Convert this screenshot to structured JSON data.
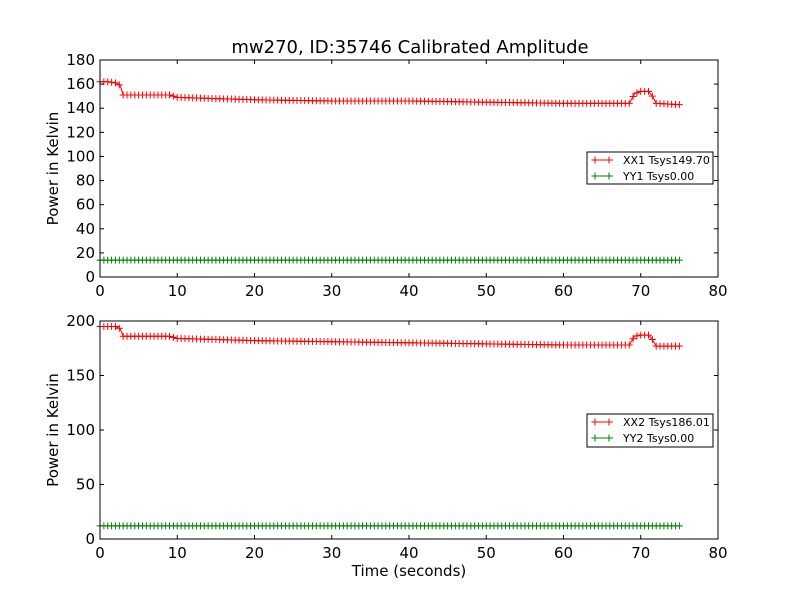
{
  "figure": {
    "title": "mw270, ID:35746 Calibrated Amplitude"
  },
  "chart_data": [
    {
      "type": "line",
      "title": "mw270, ID:35746 Calibrated Amplitude",
      "xlabel": "",
      "ylabel": "Power in Kelvin",
      "xlim": [
        0,
        80
      ],
      "ylim": [
        0,
        180
      ],
      "xticks": [
        0,
        10,
        20,
        30,
        40,
        50,
        60,
        70,
        80
      ],
      "yticks": [
        0,
        20,
        40,
        60,
        80,
        100,
        120,
        140,
        160,
        180
      ],
      "grid": false,
      "legend_placement": "center-right",
      "series": [
        {
          "name": "XX1 Tsys149.70",
          "color": "#ff0000",
          "marker": "+",
          "points": [
            [
              0,
              162
            ],
            [
              1,
              162
            ],
            [
              2,
              161
            ],
            [
              2.6,
              159
            ],
            [
              3,
              151
            ],
            [
              5,
              151
            ],
            [
              8,
              151
            ],
            [
              9,
              151
            ],
            [
              10,
              149
            ],
            [
              15,
              148
            ],
            [
              20,
              147
            ],
            [
              30,
              146
            ],
            [
              40,
              146
            ],
            [
              50,
              145
            ],
            [
              60,
              144
            ],
            [
              68.5,
              144
            ],
            [
              69.2,
              152
            ],
            [
              70,
              154
            ],
            [
              71,
              154
            ],
            [
              71.5,
              150
            ],
            [
              72,
              144
            ],
            [
              75,
              143
            ]
          ]
        },
        {
          "name": "YY1 Tsys0.00",
          "color": "#008000",
          "marker": "+",
          "points": [
            [
              0,
              14
            ],
            [
              75,
              14
            ]
          ]
        }
      ]
    },
    {
      "type": "line",
      "title": "",
      "xlabel": "Time (seconds)",
      "ylabel": "Power in Kelvin",
      "xlim": [
        0,
        80
      ],
      "ylim": [
        0,
        200
      ],
      "xticks": [
        0,
        10,
        20,
        30,
        40,
        50,
        60,
        70,
        80
      ],
      "yticks": [
        0,
        50,
        100,
        150,
        200
      ],
      "grid": false,
      "legend_placement": "center-right",
      "series": [
        {
          "name": "XX2 Tsys186.01",
          "color": "#ff0000",
          "marker": "+",
          "points": [
            [
              0,
              195
            ],
            [
              1,
              195
            ],
            [
              2,
              195
            ],
            [
              2.6,
              193
            ],
            [
              3,
              186
            ],
            [
              5,
              186
            ],
            [
              9,
              186
            ],
            [
              10,
              184
            ],
            [
              15,
              183
            ],
            [
              20,
              182
            ],
            [
              30,
              181
            ],
            [
              40,
              180
            ],
            [
              50,
              179
            ],
            [
              60,
              178
            ],
            [
              68.5,
              178
            ],
            [
              69.2,
              186
            ],
            [
              70,
              187
            ],
            [
              71,
              187
            ],
            [
              71.5,
              183
            ],
            [
              72,
              177
            ],
            [
              75,
              177
            ]
          ]
        },
        {
          "name": "YY2 Tsys0.00",
          "color": "#008000",
          "marker": "+",
          "points": [
            [
              0,
              12
            ],
            [
              75,
              12
            ]
          ]
        }
      ]
    }
  ]
}
